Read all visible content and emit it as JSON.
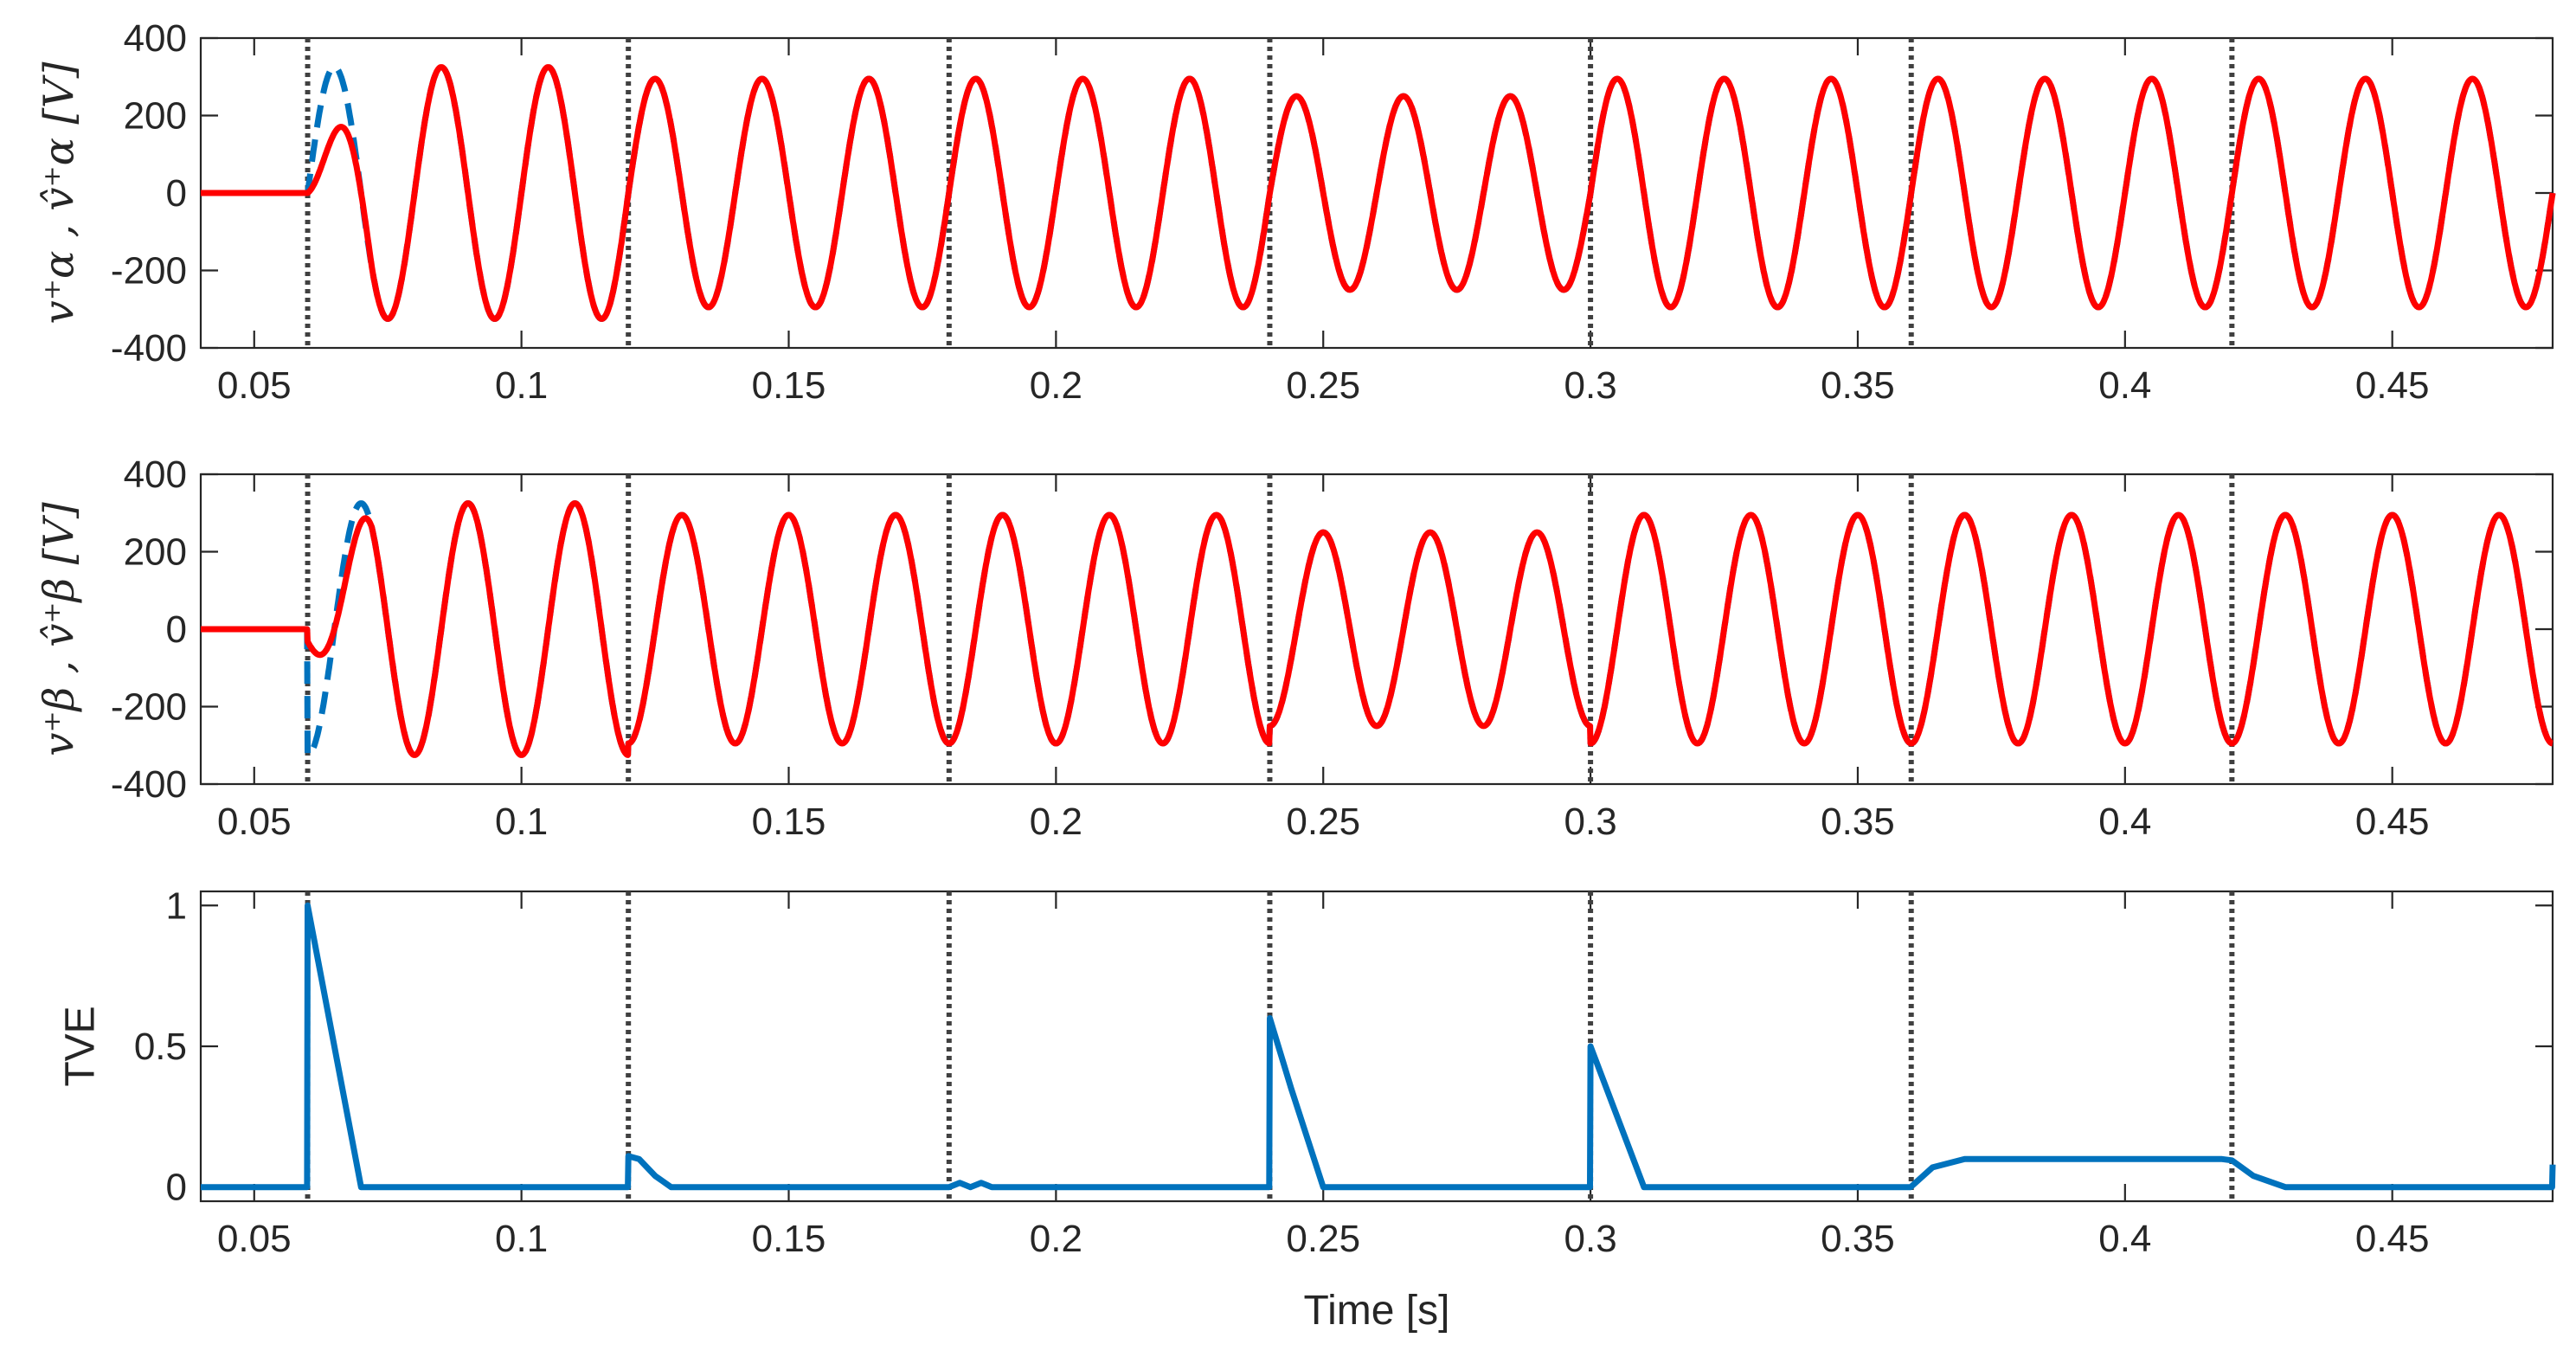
{
  "colors": {
    "measured": "#ff0000",
    "estimated": "#0072bd",
    "event_line": "#404040",
    "axis": "#262626"
  },
  "xlabel": "Time [s]",
  "chart_data": [
    {
      "type": "line",
      "ylabel": "v⁺α , v̂⁺α [V]",
      "xlim": [
        0.04,
        0.48
      ],
      "ylim": [
        -400,
        400
      ],
      "xticks": [
        0.05,
        0.1,
        0.15,
        0.2,
        0.25,
        0.3,
        0.35,
        0.4,
        0.45
      ],
      "xtick_labels": [
        "0.05",
        "0.1",
        "0.15",
        "0.2",
        "0.25",
        "0.3",
        "0.35",
        "0.4",
        "0.45"
      ],
      "yticks": [
        400,
        200,
        0,
        -200,
        -400
      ],
      "ytick_labels": [
        "400",
        "200",
        "0",
        "-200",
        "-400"
      ],
      "event_lines_x": [
        0.06,
        0.12,
        0.18,
        0.24,
        0.3,
        0.36,
        0.42
      ],
      "series": [
        {
          "style": "solid",
          "color": "#ff0000",
          "amplitude_by_interval": [
            0,
            325,
            295,
            295,
            250,
            295,
            295,
            295
          ],
          "phase": "sin"
        },
        {
          "style": "dashed",
          "color": "#0072bd",
          "amplitude_by_interval": [
            0,
            325,
            295,
            295,
            250,
            295,
            295,
            295
          ],
          "phase": "sin"
        }
      ]
    },
    {
      "type": "line",
      "ylabel": "v⁺β , v̂⁺β [V]",
      "xlim": [
        0.04,
        0.48
      ],
      "ylim": [
        -400,
        400
      ],
      "xticks": [
        0.05,
        0.1,
        0.15,
        0.2,
        0.25,
        0.3,
        0.35,
        0.4,
        0.45
      ],
      "xtick_labels": [
        "0.05",
        "0.1",
        "0.15",
        "0.2",
        "0.25",
        "0.3",
        "0.35",
        "0.4",
        "0.45"
      ],
      "yticks": [
        400,
        200,
        0,
        -200,
        -400
      ],
      "ytick_labels": [
        "400",
        "200",
        "0",
        "-200",
        "-400"
      ],
      "event_lines_x": [
        0.06,
        0.12,
        0.18,
        0.24,
        0.3,
        0.36,
        0.42
      ],
      "series": [
        {
          "style": "solid",
          "color": "#ff0000",
          "amplitude_by_interval": [
            0,
            325,
            295,
            295,
            250,
            295,
            295,
            295
          ],
          "phase": "cos"
        },
        {
          "style": "dashed",
          "color": "#0072bd",
          "amplitude_by_interval": [
            0,
            325,
            295,
            295,
            250,
            295,
            295,
            295
          ],
          "phase": "cos"
        }
      ]
    },
    {
      "type": "line",
      "ylabel": "TVE",
      "xlim": [
        0.04,
        0.48
      ],
      "ylim": [
        -0.05,
        1.05
      ],
      "xticks": [
        0.05,
        0.1,
        0.15,
        0.2,
        0.25,
        0.3,
        0.35,
        0.4,
        0.45
      ],
      "xtick_labels": [
        "0.05",
        "0.1",
        "0.15",
        "0.2",
        "0.25",
        "0.3",
        "0.35",
        "0.4",
        "0.45"
      ],
      "yticks": [
        1,
        0.5,
        0
      ],
      "ytick_labels": [
        "1",
        "0.5",
        "0"
      ],
      "event_lines_x": [
        0.06,
        0.12,
        0.18,
        0.24,
        0.3,
        0.36,
        0.42
      ],
      "series": [
        {
          "style": "solid",
          "color": "#0072bd",
          "x": [
            0.04,
            0.0599,
            0.06,
            0.07,
            0.0701,
            0.1199,
            0.12,
            0.122,
            0.125,
            0.128,
            0.1281,
            0.18,
            0.182,
            0.184,
            0.186,
            0.188,
            0.19,
            0.2399,
            0.24,
            0.244,
            0.25,
            0.2501,
            0.2999,
            0.3,
            0.304,
            0.31,
            0.3101,
            0.3599,
            0.364,
            0.37,
            0.418,
            0.42,
            0.424,
            0.43,
            0.4799,
            0.48
          ],
          "y": [
            0,
            0,
            1.0,
            0,
            0,
            0,
            0.11,
            0.1,
            0.04,
            0,
            0,
            0,
            0.015,
            0,
            0.015,
            0,
            0,
            0,
            0.6,
            0.35,
            0,
            0,
            0,
            0.5,
            0.3,
            0,
            0,
            0,
            0.07,
            0.1,
            0.1,
            0.095,
            0.04,
            0,
            0,
            0.08
          ]
        }
      ]
    }
  ]
}
